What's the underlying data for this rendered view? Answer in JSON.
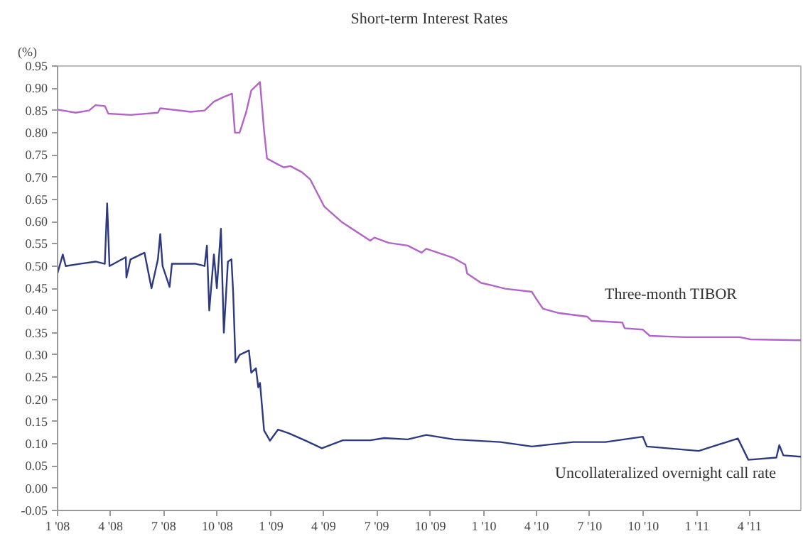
{
  "chart_data": {
    "type": "line",
    "title": "Short-term Interest Rates",
    "ylabel": "(%)",
    "xlim": [
      "2008-01-01",
      "2011-06-28"
    ],
    "xticks": [
      {
        "value": "2008-01-01",
        "label": "1 '08"
      },
      {
        "value": "2008-04-01",
        "label": "4 '08"
      },
      {
        "value": "2008-07-01",
        "label": "7 '08"
      },
      {
        "value": "2008-10-01",
        "label": "10 '08"
      },
      {
        "value": "2009-01-01",
        "label": "1 '09"
      },
      {
        "value": "2009-04-01",
        "label": "4 '09"
      },
      {
        "value": "2009-07-01",
        "label": "7 '09"
      },
      {
        "value": "2009-10-01",
        "label": "10 '09"
      },
      {
        "value": "2010-01-01",
        "label": "1 '10"
      },
      {
        "value": "2010-04-01",
        "label": "4 '10"
      },
      {
        "value": "2010-07-01",
        "label": "7 '10"
      },
      {
        "value": "2010-10-01",
        "label": "10 '10"
      },
      {
        "value": "2011-01-01",
        "label": "1 '11"
      },
      {
        "value": "2011-04-01",
        "label": "4 '11"
      }
    ],
    "ylim": [
      -0.05,
      0.95
    ],
    "yticks": [
      {
        "value": -0.05,
        "label": "-0.05"
      },
      {
        "value": 0,
        "label": "0.00"
      },
      {
        "value": 0.05,
        "label": "0.05"
      },
      {
        "value": 0.1,
        "label": "0.10"
      },
      {
        "value": 0.15,
        "label": "0.15"
      },
      {
        "value": 0.2,
        "label": "0.20"
      },
      {
        "value": 0.25,
        "label": "0.25"
      },
      {
        "value": 0.3,
        "label": "0.30"
      },
      {
        "value": 0.35,
        "label": "0.35"
      },
      {
        "value": 0.4,
        "label": "0.40"
      },
      {
        "value": 0.45,
        "label": "0.45"
      },
      {
        "value": 0.5,
        "label": "0.50"
      },
      {
        "value": 0.55,
        "label": "0.55"
      },
      {
        "value": 0.6,
        "label": "0.60"
      },
      {
        "value": 0.65,
        "label": "0.65"
      },
      {
        "value": 0.7,
        "label": "0.70"
      },
      {
        "value": 0.75,
        "label": "0.75"
      },
      {
        "value": 0.8,
        "label": "0.80"
      },
      {
        "value": 0.85,
        "label": "0.85"
      },
      {
        "value": 0.9,
        "label": "0.90"
      },
      {
        "value": 0.95,
        "label": "0.95"
      }
    ],
    "grid": false,
    "legend": false,
    "marker": "none",
    "line_style": "solid",
    "series": [
      {
        "name": "Three-month TIBOR",
        "color": "#b264c8",
        "x": [
          "2008-01-01",
          "2008-02-01",
          "2008-02-24",
          "2008-03-06",
          "2008-03-22",
          "2008-03-28",
          "2008-05-05",
          "2008-06-21",
          "2008-06-25",
          "2008-08-16",
          "2008-09-09",
          "2008-09-25",
          "2008-10-11",
          "2008-10-26",
          "2008-10-31",
          "2008-11-08",
          "2008-11-19",
          "2008-11-28",
          "2008-12-13",
          "2008-12-20",
          "2008-12-25",
          "2009-01-15",
          "2009-01-23",
          "2009-02-03",
          "2009-02-23",
          "2009-03-09",
          "2009-04-02",
          "2009-05-03",
          "2009-06-20",
          "2009-06-27",
          "2009-07-22",
          "2009-08-23",
          "2009-09-16",
          "2009-09-24",
          "2009-11-10",
          "2009-11-30",
          "2009-12-03",
          "2009-12-27",
          "2010-01-13",
          "2010-02-06",
          "2010-03-24",
          "2010-03-31",
          "2010-04-12",
          "2010-05-10",
          "2010-06-27",
          "2010-07-04",
          "2010-08-26",
          "2010-08-30",
          "2010-09-30",
          "2010-10-12",
          "2010-12-11",
          "2011-03-15",
          "2011-04-03",
          "2011-06-28"
        ],
        "values": [
          0.852,
          0.845,
          0.85,
          0.862,
          0.86,
          0.843,
          0.84,
          0.845,
          0.855,
          0.847,
          0.85,
          0.87,
          0.88,
          0.888,
          0.8,
          0.8,
          0.845,
          0.895,
          0.914,
          0.804,
          0.742,
          0.727,
          0.722,
          0.725,
          0.711,
          0.695,
          0.634,
          0.598,
          0.557,
          0.564,
          0.552,
          0.546,
          0.53,
          0.539,
          0.518,
          0.503,
          0.483,
          0.462,
          0.457,
          0.449,
          0.442,
          0.427,
          0.404,
          0.394,
          0.386,
          0.377,
          0.373,
          0.36,
          0.357,
          0.343,
          0.34,
          0.34,
          0.335,
          0.333
        ]
      },
      {
        "name": "Uncollateralized overnight call rate",
        "color": "#2e3a80",
        "x": [
          "2008-01-01",
          "2008-01-10",
          "2008-01-15",
          "2008-02-08",
          "2008-03-06",
          "2008-03-22",
          "2008-03-26",
          "2008-03-30",
          "2008-04-27",
          "2008-04-28",
          "2008-05-05",
          "2008-05-29",
          "2008-06-10",
          "2008-06-21",
          "2008-06-25",
          "2008-06-29",
          "2008-07-11",
          "2008-07-15",
          "2008-08-25",
          "2008-09-09",
          "2008-09-13",
          "2008-09-17",
          "2008-09-25",
          "2008-09-30",
          "2008-10-07",
          "2008-10-12",
          "2008-10-19",
          "2008-10-25",
          "2008-10-28",
          "2008-11-01",
          "2008-11-08",
          "2008-11-24",
          "2008-11-28",
          "2008-12-06",
          "2008-12-10",
          "2008-12-13",
          "2008-12-20",
          "2008-12-30",
          "2009-01-13",
          "2009-01-31",
          "2009-03-01",
          "2009-03-29",
          "2009-05-04",
          "2009-06-20",
          "2009-07-14",
          "2009-08-23",
          "2009-09-24",
          "2009-11-10",
          "2010-01-29",
          "2010-03-24",
          "2010-06-03",
          "2010-07-28",
          "2010-09-30",
          "2010-10-07",
          "2011-01-04",
          "2011-02-21",
          "2011-03-12",
          "2011-03-30",
          "2011-05-17",
          "2011-05-22",
          "2011-05-29",
          "2011-06-28"
        ],
        "values": [
          0.484,
          0.526,
          0.5,
          0.505,
          0.51,
          0.505,
          0.641,
          0.5,
          0.52,
          0.474,
          0.515,
          0.53,
          0.45,
          0.515,
          0.572,
          0.5,
          0.453,
          0.505,
          0.505,
          0.5,
          0.546,
          0.4,
          0.526,
          0.45,
          0.584,
          0.35,
          0.51,
          0.515,
          0.44,
          0.283,
          0.3,
          0.31,
          0.26,
          0.27,
          0.227,
          0.237,
          0.13,
          0.107,
          0.132,
          0.124,
          0.107,
          0.09,
          0.108,
          0.108,
          0.113,
          0.11,
          0.12,
          0.11,
          0.104,
          0.094,
          0.104,
          0.104,
          0.116,
          0.094,
          0.084,
          0.104,
          0.112,
          0.064,
          0.069,
          0.097,
          0.074,
          0.071
        ]
      }
    ]
  }
}
